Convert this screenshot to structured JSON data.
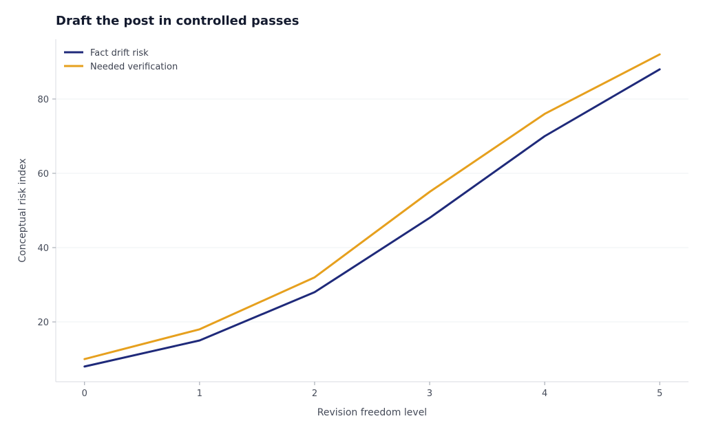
{
  "chart_data": {
    "type": "line",
    "title": "Draft the post in controlled passes",
    "xlabel": "Revision freedom level",
    "ylabel": "Conceptual risk index",
    "x": [
      0,
      1,
      2,
      3,
      4,
      5
    ],
    "xlim": [
      -0.25,
      5.25
    ],
    "ylim": [
      3.9,
      96.1
    ],
    "x_ticks": [
      0,
      1,
      2,
      3,
      4,
      5
    ],
    "y_ticks": [
      20,
      40,
      60,
      80
    ],
    "grid": "horizontal",
    "legend": "top-left",
    "series": [
      {
        "name": "Fact drift risk",
        "color": "#1f2a7a",
        "values": [
          8,
          15,
          28,
          48,
          70,
          88
        ]
      },
      {
        "name": "Needed verification",
        "color": "#e6a01e",
        "values": [
          10,
          18,
          32,
          55,
          76,
          92
        ]
      }
    ]
  }
}
